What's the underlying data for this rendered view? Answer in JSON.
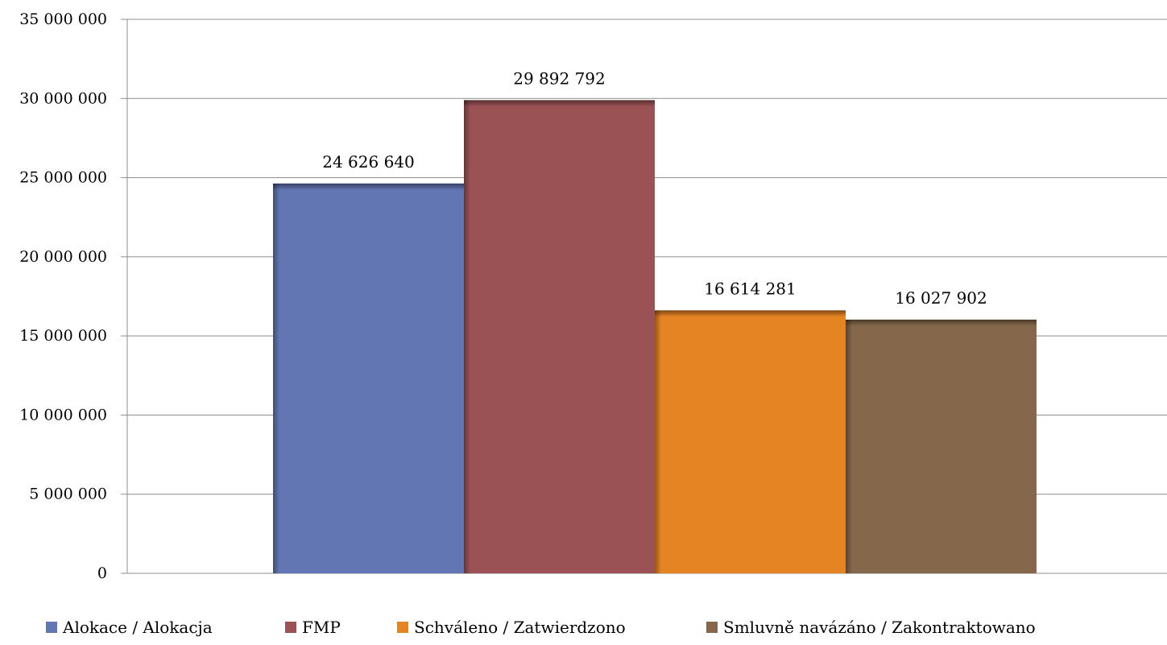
{
  "chart_data": {
    "type": "bar",
    "categories": [
      ""
    ],
    "series": [
      {
        "name": "Alokace / Alokacja",
        "values": [
          24626640
        ],
        "label": "24 626 640",
        "color": "#6176b3"
      },
      {
        "name": "FMP",
        "values": [
          29892792
        ],
        "label": "29 892 792",
        "color": "#9b5254"
      },
      {
        "name": "Schváleno / Zatwierdzono",
        "values": [
          16614281
        ],
        "label": "16 614 281",
        "color": "#e58423"
      },
      {
        "name": "Smluvně navázáno / Zakontraktowano",
        "values": [
          16027902
        ],
        "label": "16 027 902",
        "color": "#85684b"
      }
    ],
    "ylim": [
      0,
      35000000
    ],
    "yticks": [
      0,
      5000000,
      10000000,
      15000000,
      20000000,
      25000000,
      30000000,
      35000000
    ],
    "ytick_labels": [
      "0",
      "5 000 000",
      "10 000 000",
      "15 000 000",
      "20 000 000",
      "25 000 000",
      "30 000 000",
      "35 000 000"
    ],
    "grid": true,
    "legend_position": "bottom",
    "title": "",
    "xlabel": "",
    "ylabel": ""
  }
}
